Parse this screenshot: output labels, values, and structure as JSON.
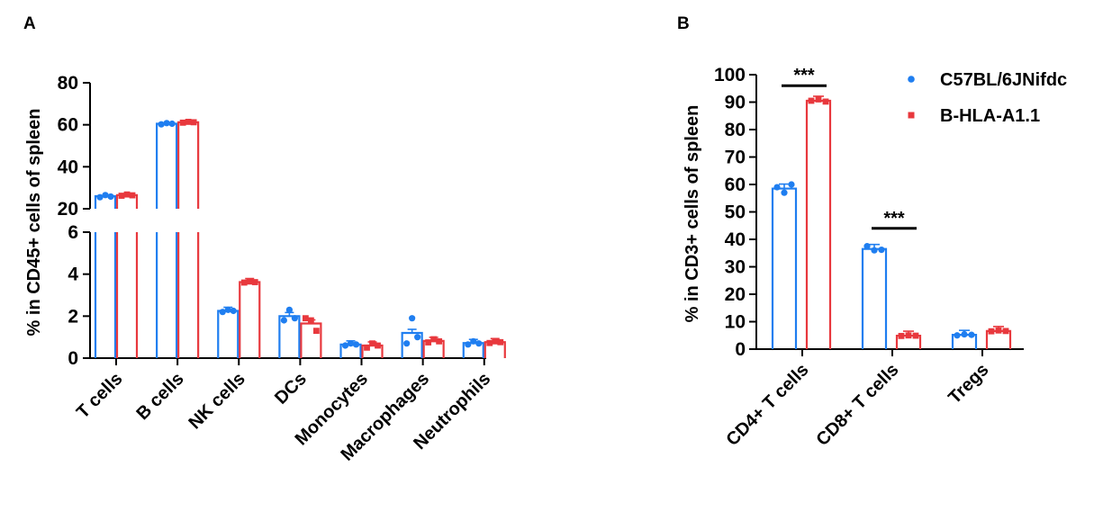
{
  "colors": {
    "c57": "#1f7ef0",
    "hla": "#e8383d",
    "axis": "#000000"
  },
  "legend": [
    {
      "label": "C57BL/6JNifdc",
      "color": "#1f7ef0",
      "marker": "circle"
    },
    {
      "label": "B-HLA-A1.1",
      "color": "#e8383d",
      "marker": "square"
    }
  ],
  "chart_data": [
    {
      "panel": "A",
      "type": "bar",
      "ylabel": "% in CD45+ cells of spleen",
      "y_axis_break": {
        "lower": [
          0,
          6
        ],
        "upper": [
          20,
          80
        ]
      },
      "yticks_lower": [
        0,
        2,
        4,
        6
      ],
      "yticks_upper": [
        20,
        40,
        60,
        80
      ],
      "categories": [
        "T cells",
        "B cells",
        "NK cells",
        "DCs",
        "Monocytes",
        "Macrophages",
        "Neutrophils"
      ],
      "series": [
        {
          "name": "C57BL/6JNifdc",
          "values": [
            26,
            60.5,
            2.25,
            2.0,
            0.65,
            1.2,
            0.72
          ],
          "points": [
            [
              25.5,
              26.5,
              25.8
            ],
            [
              60.2,
              60.8,
              60.5
            ],
            [
              2.2,
              2.3,
              2.25
            ],
            [
              1.8,
              2.3,
              1.9
            ],
            [
              0.6,
              0.7,
              0.65
            ],
            [
              0.7,
              1.9,
              1.0
            ],
            [
              0.65,
              0.8,
              0.7
            ]
          ]
        },
        {
          "name": "B-HLA-A1.1",
          "values": [
            26.5,
            61.2,
            3.62,
            1.65,
            0.6,
            0.82,
            0.76
          ],
          "points": [
            [
              26.2,
              26.8,
              26.4
            ],
            [
              61,
              61.4,
              61.2
            ],
            [
              3.6,
              3.65,
              3.62
            ],
            [
              1.9,
              1.8,
              1.3
            ],
            [
              0.5,
              0.7,
              0.6
            ],
            [
              0.75,
              0.9,
              0.8
            ],
            [
              0.72,
              0.8,
              0.76
            ]
          ]
        }
      ]
    },
    {
      "panel": "B",
      "type": "bar",
      "ylabel": "% in CD3+ cells of spleen",
      "ylim": [
        0,
        100
      ],
      "yticks": [
        0,
        10,
        20,
        30,
        40,
        50,
        60,
        70,
        80,
        90,
        100
      ],
      "categories": [
        "CD4+ T cells",
        "CD8+ T cells",
        "Tregs"
      ],
      "series": [
        {
          "name": "C57BL/6JNifdc",
          "values": [
            58.5,
            36.5,
            5.2
          ],
          "points": [
            [
              59,
              57,
              60
            ],
            [
              37.5,
              36,
              36.2
            ],
            [
              5.0,
              5.4,
              5.2
            ]
          ]
        },
        {
          "name": "B-HLA-A1.1",
          "values": [
            90.5,
            4.9,
            6.6
          ],
          "points": [
            [
              90.5,
              91,
              90.2
            ],
            [
              4.8,
              5.0,
              4.9
            ],
            [
              6.5,
              6.8,
              6.6
            ]
          ]
        }
      ],
      "significance": [
        {
          "category": "CD4+ T cells",
          "label": "***"
        },
        {
          "category": "CD8+ T cells",
          "label": "***"
        }
      ]
    }
  ]
}
